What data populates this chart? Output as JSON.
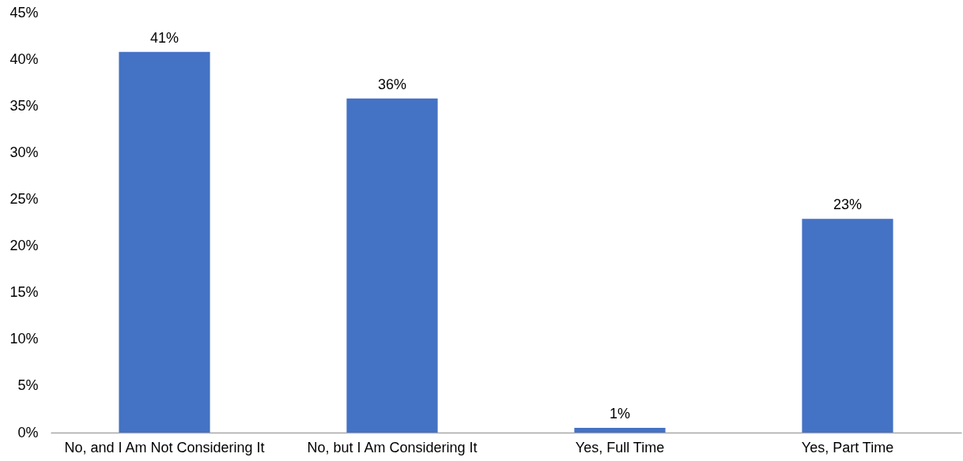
{
  "chart_data": {
    "type": "bar",
    "categories": [
      "No, and I Am Not Considering It",
      "No, but I Am Considering It",
      "Yes, Full Time",
      "Yes, Part Time"
    ],
    "values": [
      40.8,
      35.8,
      0.5,
      22.9
    ],
    "value_labels": [
      "41%",
      "36%",
      "1%",
      "23%"
    ],
    "color": "#4472c4",
    "ylim": [
      0,
      45
    ],
    "yticks": [
      {
        "value": 0,
        "label": "0%"
      },
      {
        "value": 5,
        "label": "5%"
      },
      {
        "value": 10,
        "label": "10%"
      },
      {
        "value": 15,
        "label": "15%"
      },
      {
        "value": 20,
        "label": "20%"
      },
      {
        "value": 25,
        "label": "25%"
      },
      {
        "value": 30,
        "label": "30%"
      },
      {
        "value": 35,
        "label": "35%"
      },
      {
        "value": 40,
        "label": "40%"
      },
      {
        "value": 45,
        "label": "45%"
      }
    ]
  }
}
